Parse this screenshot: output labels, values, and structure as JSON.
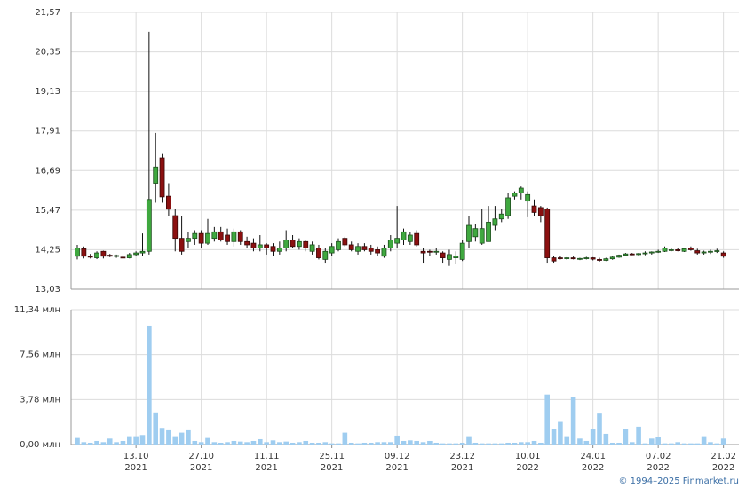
{
  "chart_data": {
    "type": "candlestick",
    "categories": [
      null,
      null,
      null,
      null,
      null,
      null,
      null,
      null,
      null,
      null,
      null,
      null,
      null,
      null,
      null,
      null,
      null,
      null,
      null,
      null,
      null,
      null,
      null,
      null,
      null,
      null,
      null,
      null,
      null,
      null,
      null,
      null,
      null,
      null,
      null,
      null,
      null,
      null,
      null,
      null,
      null,
      null,
      null,
      null,
      null,
      null,
      null,
      null,
      null,
      null,
      null,
      null,
      null,
      null,
      null,
      null,
      null,
      null,
      null,
      null,
      null,
      null,
      null,
      null,
      null,
      null,
      null,
      null,
      null,
      null,
      null,
      null,
      null,
      null,
      null,
      null,
      null,
      null,
      null,
      null,
      null,
      null,
      null,
      null,
      null,
      null,
      null,
      null,
      null,
      null,
      null,
      null,
      null,
      null,
      null,
      null,
      null,
      null,
      null,
      null
    ],
    "open": [
      14.05,
      14.28,
      14.05,
      14.0,
      14.2,
      14.08,
      14.05,
      14.02,
      14.0,
      14.1,
      14.15,
      14.2,
      16.3,
      17.08,
      15.9,
      15.3,
      14.6,
      14.5,
      14.6,
      14.75,
      14.45,
      14.6,
      14.8,
      14.7,
      14.5,
      14.8,
      14.5,
      14.45,
      14.3,
      14.4,
      14.35,
      14.2,
      14.3,
      14.55,
      14.35,
      14.5,
      14.2,
      14.3,
      13.95,
      14.15,
      14.25,
      14.6,
      14.4,
      14.2,
      14.35,
      14.3,
      14.25,
      14.05,
      14.3,
      14.45,
      14.55,
      14.5,
      14.75,
      14.2,
      14.2,
      14.18,
      14.15,
      13.95,
      14.0,
      13.95,
      14.5,
      14.65,
      14.45,
      14.5,
      15.0,
      15.2,
      15.3,
      15.9,
      16.0,
      15.75,
      15.6,
      15.55,
      15.5,
      14.0,
      14.0,
      13.98,
      14.0,
      13.97,
      13.98,
      14.0,
      13.95,
      13.92,
      13.97,
      14.02,
      14.08,
      14.12,
      14.1,
      14.13,
      14.15,
      14.18,
      14.2,
      14.25,
      14.25,
      14.2,
      14.3,
      14.22,
      14.15,
      14.18,
      14.2,
      14.15
    ],
    "high": [
      14.4,
      14.35,
      14.12,
      14.2,
      14.22,
      14.12,
      14.1,
      14.08,
      14.15,
      14.2,
      14.75,
      20.97,
      17.85,
      17.2,
      16.3,
      15.5,
      15.3,
      14.8,
      14.85,
      14.85,
      15.2,
      14.95,
      14.95,
      14.9,
      14.9,
      14.85,
      14.65,
      14.6,
      14.7,
      14.45,
      14.45,
      14.5,
      14.85,
      14.7,
      14.6,
      14.55,
      14.5,
      14.4,
      14.3,
      14.45,
      14.6,
      14.65,
      14.5,
      14.45,
      14.45,
      14.4,
      14.35,
      14.4,
      14.7,
      15.6,
      14.9,
      14.8,
      14.85,
      14.3,
      14.25,
      14.3,
      14.2,
      14.25,
      14.2,
      14.55,
      15.3,
      15.05,
      15.5,
      15.6,
      15.6,
      15.5,
      16.0,
      16.05,
      16.2,
      16.05,
      15.8,
      15.6,
      15.55,
      14.05,
      14.05,
      14.02,
      14.04,
      14.0,
      14.03,
      14.02,
      14.0,
      14.0,
      14.05,
      14.1,
      14.15,
      14.15,
      14.15,
      14.2,
      14.2,
      14.25,
      14.35,
      14.3,
      14.3,
      14.3,
      14.35,
      14.28,
      14.22,
      14.25,
      14.28,
      14.2
    ],
    "low": [
      13.95,
      13.98,
      13.98,
      13.96,
      13.98,
      14.02,
      14.0,
      13.98,
      13.98,
      14.05,
      14.05,
      14.1,
      15.7,
      15.7,
      15.3,
      14.2,
      14.1,
      14.3,
      14.4,
      14.3,
      14.4,
      14.5,
      14.5,
      14.4,
      14.35,
      14.4,
      14.3,
      14.2,
      14.2,
      14.1,
      14.05,
      14.1,
      14.2,
      14.3,
      14.25,
      14.2,
      14.1,
      13.95,
      13.85,
      14.05,
      14.2,
      14.35,
      14.2,
      14.1,
      14.2,
      14.1,
      14.05,
      14.0,
      14.2,
      14.3,
      14.4,
      14.4,
      14.35,
      13.85,
      14.05,
      14.1,
      13.85,
      13.75,
      13.8,
      13.9,
      14.3,
      14.5,
      14.4,
      14.5,
      14.85,
      15.1,
      15.2,
      15.8,
      15.8,
      15.25,
      15.3,
      15.1,
      13.85,
      13.85,
      13.95,
      13.94,
      13.95,
      13.93,
      13.95,
      13.92,
      13.88,
      13.9,
      13.94,
      14.0,
      14.05,
      14.08,
      14.06,
      14.08,
      14.1,
      14.15,
      14.18,
      14.2,
      14.2,
      14.18,
      14.22,
      14.1,
      14.1,
      14.12,
      14.15,
      14.0
    ],
    "close": [
      14.3,
      14.05,
      14.02,
      14.15,
      14.05,
      14.05,
      14.07,
      14.0,
      14.1,
      14.15,
      14.2,
      15.8,
      16.8,
      15.88,
      15.5,
      14.6,
      14.2,
      14.6,
      14.75,
      14.45,
      14.75,
      14.8,
      14.55,
      14.5,
      14.8,
      14.5,
      14.4,
      14.3,
      14.4,
      14.3,
      14.2,
      14.3,
      14.55,
      14.35,
      14.5,
      14.3,
      14.4,
      14.0,
      14.2,
      14.35,
      14.5,
      14.4,
      14.25,
      14.35,
      14.25,
      14.2,
      14.15,
      14.3,
      14.55,
      14.6,
      14.8,
      14.7,
      14.4,
      14.15,
      14.18,
      14.2,
      14.0,
      14.1,
      14.05,
      14.45,
      15.0,
      14.9,
      14.9,
      15.1,
      15.2,
      15.35,
      15.85,
      16.0,
      16.15,
      15.95,
      15.4,
      15.3,
      14.0,
      13.9,
      13.98,
      14.0,
      13.97,
      13.98,
      14.0,
      13.96,
      13.92,
      13.97,
      14.02,
      14.08,
      14.12,
      14.1,
      14.13,
      14.15,
      14.18,
      14.2,
      14.3,
      14.25,
      14.22,
      14.28,
      14.25,
      14.15,
      14.18,
      14.2,
      14.22,
      14.05
    ],
    "volume": [
      0.55,
      0.2,
      0.15,
      0.3,
      0.2,
      0.5,
      0.2,
      0.3,
      0.7,
      0.7,
      0.8,
      10.0,
      2.7,
      1.4,
      1.2,
      0.7,
      1.0,
      1.2,
      0.3,
      0.2,
      0.55,
      0.2,
      0.15,
      0.2,
      0.3,
      0.25,
      0.2,
      0.3,
      0.45,
      0.2,
      0.35,
      0.2,
      0.25,
      0.15,
      0.2,
      0.3,
      0.15,
      0.15,
      0.2,
      0.1,
      0.1,
      1.0,
      0.15,
      0.1,
      0.15,
      0.15,
      0.2,
      0.2,
      0.2,
      0.75,
      0.3,
      0.35,
      0.3,
      0.2,
      0.3,
      0.15,
      0.1,
      0.1,
      0.1,
      0.15,
      0.7,
      0.15,
      0.1,
      0.1,
      0.1,
      0.1,
      0.15,
      0.15,
      0.2,
      0.2,
      0.3,
      0.15,
      4.2,
      1.3,
      1.9,
      0.7,
      4.0,
      0.5,
      0.3,
      1.3,
      2.6,
      0.9,
      0.15,
      0.15,
      1.3,
      0.2,
      1.5,
      0.1,
      0.5,
      0.6,
      0.1,
      0.1,
      0.2,
      0.1,
      0.1,
      0.1,
      0.7,
      0.2,
      0.1,
      0.5
    ],
    "up_color": "#3fa83f",
    "down_color": "#8b1010",
    "volume_color": "#9fcdf0",
    "ylim": [
      13.03,
      21.57
    ],
    "yticks": [
      {
        "value": 13.03,
        "label": "13,03"
      },
      {
        "value": 14.25,
        "label": "14,25"
      },
      {
        "value": 15.47,
        "label": "15,47"
      },
      {
        "value": 16.69,
        "label": "16,69"
      },
      {
        "value": 17.91,
        "label": "17,91"
      },
      {
        "value": 19.13,
        "label": "19,13"
      },
      {
        "value": 20.35,
        "label": "20,35"
      },
      {
        "value": 21.57,
        "label": "21,57"
      }
    ],
    "y2lim": [
      0,
      11.34
    ],
    "y2ticks": [
      {
        "value": 0,
        "label": "0,00 млн"
      },
      {
        "value": 3.78,
        "label": "3,78 млн"
      },
      {
        "value": 7.56,
        "label": "7,56 млн"
      },
      {
        "value": 11.34,
        "label": "11,34 млн"
      }
    ],
    "xticks": [
      {
        "value": 9,
        "label": "13.10 2021"
      },
      {
        "value": 19,
        "label": "27.10 2021"
      },
      {
        "value": 29,
        "label": "11.11 2021"
      },
      {
        "value": 39,
        "label": "25.11 2021"
      },
      {
        "value": 49,
        "label": "09.12 2021"
      },
      {
        "value": 59,
        "label": "23.12 2021"
      },
      {
        "value": 69,
        "label": "10.01 2022"
      },
      {
        "value": 79,
        "label": "24.01 2022"
      },
      {
        "value": 89,
        "label": "07.02 2022"
      },
      {
        "value": 99,
        "label": "21.02 2022"
      }
    ],
    "grid": true,
    "credit": "© 1994–2025 Finmarket.ru"
  }
}
